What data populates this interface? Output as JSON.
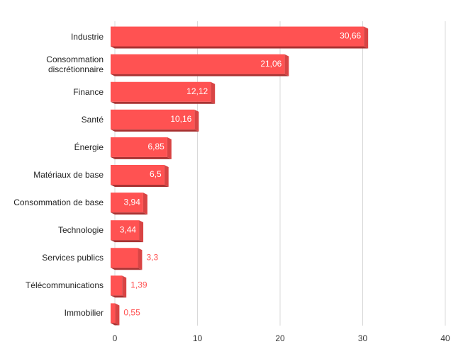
{
  "chart_data": {
    "type": "bar",
    "orientation": "horizontal",
    "categories": [
      "Industrie",
      "Consommation discrétionnaire",
      "Finance",
      "Santé",
      "Énergie",
      "Matériaux de base",
      "Consommation de base",
      "Technologie",
      "Services publics",
      "Télécommunications",
      "Immobilier"
    ],
    "values": [
      30.66,
      21.06,
      12.12,
      10.16,
      6.85,
      6.5,
      3.94,
      3.44,
      3.3,
      1.39,
      0.55
    ],
    "value_labels": [
      "30,66",
      "21,06",
      "12,12",
      "10,16",
      "6,85",
      "6,5",
      "3,94",
      "3,44",
      "3,3",
      "1,39",
      "0,55"
    ],
    "color": "#ff5252",
    "xlim": [
      0,
      40
    ],
    "xticks": [
      0,
      10,
      20,
      30,
      40
    ],
    "grid": true
  }
}
